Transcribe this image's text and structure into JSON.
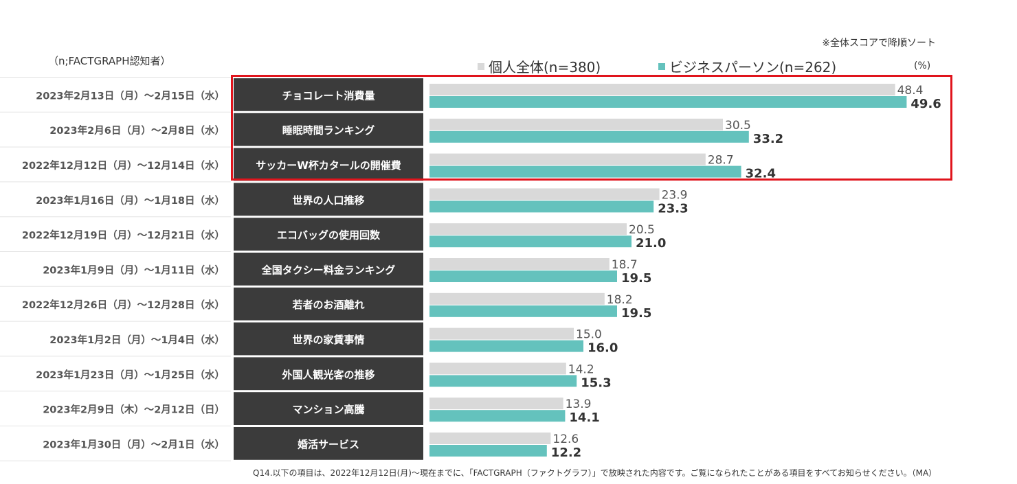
{
  "chart_data": {
    "type": "bar",
    "orientation": "horizontal",
    "sample_label": "（n;FACTGRAPH認知者）",
    "note": "※全体スコアで降順ソート",
    "unit": "(%)",
    "xlim": [
      0,
      50
    ],
    "series": [
      {
        "name": "個人全体(n=380)",
        "color": "#d9d9d9",
        "values": [
          48.4,
          30.5,
          28.7,
          23.9,
          20.5,
          18.7,
          18.2,
          15.0,
          14.2,
          13.9,
          12.6
        ]
      },
      {
        "name": "ビジネスパーソン(n=262)",
        "color": "#64c2bd",
        "values": [
          49.6,
          33.2,
          32.4,
          23.3,
          21.0,
          19.5,
          19.5,
          16.0,
          15.3,
          14.1,
          12.2
        ]
      }
    ],
    "categories": [
      {
        "date": "2023年2月13日（月）～2月15日（水）",
        "topic": "チョコレート消費量"
      },
      {
        "date": "2023年2月6日（月）～2月8日（水）",
        "topic": "睡眠時間ランキング"
      },
      {
        "date": "2022年12月12日（月）～12月14日（水）",
        "topic": "サッカーW杯カタールの開催費"
      },
      {
        "date": "2023年1月16日（月）～1月18日（水）",
        "topic": "世界の人口推移"
      },
      {
        "date": "2022年12月19日（月）～12月21日（水）",
        "topic": "エコバッグの使用回数"
      },
      {
        "date": "2023年1月9日（月）～1月11日（水）",
        "topic": "全国タクシー料金ランキング"
      },
      {
        "date": "2022年12月26日（月）～12月28日（水）",
        "topic": "若者のお酒離れ"
      },
      {
        "date": "2023年1月2日（月）～1月4日（水）",
        "topic": "世界の家賃事情"
      },
      {
        "date": "2023年1月23日（月）～1月25日（水）",
        "topic": "外国人観光客の推移"
      },
      {
        "date": "2023年2月9日（木）～2月12日（日）",
        "topic": "マンション高騰"
      },
      {
        "date": "2023年1月30日（月）～2月1日（水）",
        "topic": "婚活サービス"
      }
    ],
    "highlight_rows": 3,
    "footnote": "Q14.以下の項目は、2022年12月12日(月)～現在までに、「FACTGRAPH（ファクトグラフ）」で放映された内容です。ご覧になられたことがある項目をすべてお知らせください。（MA）"
  }
}
